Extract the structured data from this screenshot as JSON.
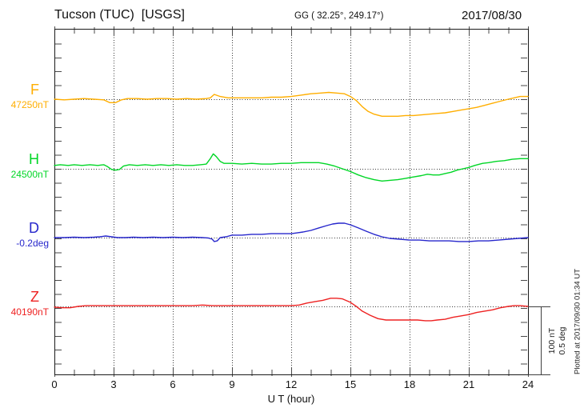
{
  "header": {
    "title": "Tucson (TUC)  [USGS]",
    "coords": "GG ( 32.25°, 249.17°)",
    "date": "2017/08/30"
  },
  "footer": {
    "xlabel": "U T (hour)"
  },
  "scale_bar": {
    "line1": "100 nT",
    "line2": "0.5 deg"
  },
  "plotted_note": "Plotted at 2017/09/30 01:34 UT",
  "chart_data": {
    "type": "line",
    "title": "Tucson (TUC) [USGS] magnetogram for 2017/08/30",
    "xlabel": "U T (hour)",
    "x_range": [
      0,
      24
    ],
    "x_ticks": [
      0,
      3,
      6,
      9,
      12,
      15,
      18,
      21,
      24
    ],
    "grid": "dotted vertical lines every 3 h; dotted horizontal line at each trace baseline",
    "legend_position": "left margin, one colored label per trace",
    "scale_per_division": {
      "field": "100 nT",
      "declination": "0.5 deg"
    },
    "series": [
      {
        "name": "F",
        "baseline_label": "47250nT",
        "baseline_value": 47250,
        "unit": "nT",
        "color": "#ffae00",
        "points": [
          [
            0,
            0
          ],
          [
            0.5,
            -1
          ],
          [
            1,
            0
          ],
          [
            1.5,
            1
          ],
          [
            2,
            0
          ],
          [
            2.5,
            -1
          ],
          [
            2.8,
            -5
          ],
          [
            3.1,
            -5
          ],
          [
            3.4,
            -1
          ],
          [
            3.7,
            1
          ],
          [
            4.2,
            1
          ],
          [
            4.7,
            0
          ],
          [
            5.2,
            1
          ],
          [
            5.7,
            1
          ],
          [
            6.2,
            0
          ],
          [
            6.7,
            1
          ],
          [
            7.2,
            0
          ],
          [
            7.7,
            1
          ],
          [
            7.9,
            2
          ],
          [
            8.1,
            7
          ],
          [
            8.4,
            4
          ],
          [
            8.8,
            2
          ],
          [
            9.5,
            2
          ],
          [
            10.5,
            2
          ],
          [
            11,
            3
          ],
          [
            11.5,
            3
          ],
          [
            12,
            4
          ],
          [
            12.5,
            6
          ],
          [
            13,
            8
          ],
          [
            13.5,
            9
          ],
          [
            13.9,
            10
          ],
          [
            14.3,
            9
          ],
          [
            14.7,
            8
          ],
          [
            15,
            4
          ],
          [
            15.3,
            -2
          ],
          [
            15.6,
            -11
          ],
          [
            15.9,
            -18
          ],
          [
            16.2,
            -22
          ],
          [
            16.6,
            -25
          ],
          [
            17,
            -25
          ],
          [
            17.4,
            -25
          ],
          [
            17.8,
            -24
          ],
          [
            18.2,
            -24
          ],
          [
            18.6,
            -23
          ],
          [
            19,
            -22
          ],
          [
            19.4,
            -21
          ],
          [
            19.8,
            -20
          ],
          [
            20.2,
            -18
          ],
          [
            20.6,
            -16
          ],
          [
            21,
            -14
          ],
          [
            21.4,
            -12
          ],
          [
            21.8,
            -9
          ],
          [
            22.2,
            -6
          ],
          [
            22.6,
            -3
          ],
          [
            23,
            0
          ],
          [
            23.3,
            2
          ],
          [
            23.6,
            4
          ],
          [
            24,
            4
          ]
        ]
      },
      {
        "name": "H",
        "baseline_label": "24500nT",
        "baseline_value": 24500,
        "unit": "nT",
        "color": "#00d626",
        "points": [
          [
            0,
            5
          ],
          [
            0.3,
            6
          ],
          [
            0.7,
            5
          ],
          [
            1,
            6
          ],
          [
            1.4,
            5
          ],
          [
            1.8,
            6
          ],
          [
            2.2,
            5
          ],
          [
            2.5,
            6
          ],
          [
            2.7,
            3
          ],
          [
            2.9,
            -1
          ],
          [
            3.1,
            -2
          ],
          [
            3.3,
            -1
          ],
          [
            3.5,
            4
          ],
          [
            3.8,
            6
          ],
          [
            4.2,
            5
          ],
          [
            4.6,
            6
          ],
          [
            5,
            5
          ],
          [
            5.4,
            6
          ],
          [
            5.8,
            5
          ],
          [
            6.2,
            6
          ],
          [
            6.6,
            5
          ],
          [
            7,
            5
          ],
          [
            7.4,
            6
          ],
          [
            7.7,
            7
          ],
          [
            7.9,
            15
          ],
          [
            8.05,
            22
          ],
          [
            8.2,
            18
          ],
          [
            8.4,
            11
          ],
          [
            8.6,
            8
          ],
          [
            9,
            8
          ],
          [
            9.5,
            7
          ],
          [
            10,
            8
          ],
          [
            10.5,
            7
          ],
          [
            11,
            7
          ],
          [
            11.5,
            8
          ],
          [
            12,
            8
          ],
          [
            12.5,
            9
          ],
          [
            13,
            9
          ],
          [
            13.4,
            9
          ],
          [
            13.8,
            7
          ],
          [
            14.2,
            4
          ],
          [
            14.6,
            0
          ],
          [
            15,
            -4
          ],
          [
            15.4,
            -9
          ],
          [
            15.8,
            -13
          ],
          [
            16.2,
            -16
          ],
          [
            16.6,
            -18
          ],
          [
            17,
            -17
          ],
          [
            17.4,
            -16
          ],
          [
            17.8,
            -14
          ],
          [
            18.2,
            -12
          ],
          [
            18.6,
            -10
          ],
          [
            18.9,
            -8
          ],
          [
            19.2,
            -9
          ],
          [
            19.5,
            -9
          ],
          [
            19.8,
            -7
          ],
          [
            20.1,
            -5
          ],
          [
            20.4,
            -2
          ],
          [
            20.7,
            0
          ],
          [
            21,
            2
          ],
          [
            21.3,
            5
          ],
          [
            21.7,
            8
          ],
          [
            22,
            9
          ],
          [
            22.4,
            11
          ],
          [
            22.8,
            12
          ],
          [
            23.2,
            14
          ],
          [
            23.6,
            15
          ],
          [
            24,
            15
          ]
        ]
      },
      {
        "name": "D",
        "baseline_label": "-0.2deg",
        "baseline_value": -0.2,
        "unit": "deg",
        "color": "#2727cc",
        "points": [
          [
            0,
            0
          ],
          [
            0.5,
            0
          ],
          [
            1,
            0.003
          ],
          [
            1.5,
            0
          ],
          [
            2,
            0.003
          ],
          [
            2.3,
            0.006
          ],
          [
            2.6,
            0.012
          ],
          [
            2.9,
            0.006
          ],
          [
            3.2,
            0
          ],
          [
            3.6,
            0
          ],
          [
            4,
            0.003
          ],
          [
            4.5,
            0
          ],
          [
            5,
            0.003
          ],
          [
            5.5,
            0
          ],
          [
            6,
            0.003
          ],
          [
            6.5,
            0
          ],
          [
            7,
            0.003
          ],
          [
            7.5,
            0
          ],
          [
            7.8,
            -0.003
          ],
          [
            8,
            -0.012
          ],
          [
            8.1,
            -0.029
          ],
          [
            8.25,
            -0.024
          ],
          [
            8.4,
            0
          ],
          [
            8.7,
            0.006
          ],
          [
            9,
            0.018
          ],
          [
            9.5,
            0.018
          ],
          [
            10,
            0.024
          ],
          [
            10.5,
            0.024
          ],
          [
            11,
            0.029
          ],
          [
            11.5,
            0.029
          ],
          [
            12,
            0.029
          ],
          [
            12.3,
            0.035
          ],
          [
            12.6,
            0.041
          ],
          [
            13,
            0.053
          ],
          [
            13.4,
            0.071
          ],
          [
            13.8,
            0.088
          ],
          [
            14.1,
            0.1
          ],
          [
            14.4,
            0.106
          ],
          [
            14.7,
            0.106
          ],
          [
            15,
            0.094
          ],
          [
            15.4,
            0.071
          ],
          [
            15.8,
            0.047
          ],
          [
            16.2,
            0.024
          ],
          [
            16.6,
            0.006
          ],
          [
            17,
            -0.006
          ],
          [
            17.5,
            -0.012
          ],
          [
            18,
            -0.018
          ],
          [
            18.5,
            -0.018
          ],
          [
            19,
            -0.024
          ],
          [
            19.5,
            -0.024
          ],
          [
            20,
            -0.024
          ],
          [
            20.5,
            -0.029
          ],
          [
            21,
            -0.029
          ],
          [
            21.5,
            -0.024
          ],
          [
            22,
            -0.024
          ],
          [
            22.5,
            -0.018
          ],
          [
            23,
            -0.012
          ],
          [
            23.5,
            -0.006
          ],
          [
            24,
            0
          ]
        ]
      },
      {
        "name": "Z",
        "baseline_label": "40190nT",
        "baseline_value": 40190,
        "unit": "nT",
        "color": "#ee2222",
        "points": [
          [
            0,
            -1
          ],
          [
            0.4,
            -2
          ],
          [
            0.8,
            -2
          ],
          [
            1.2,
            0
          ],
          [
            1.6,
            1
          ],
          [
            2,
            1
          ],
          [
            2.5,
            1
          ],
          [
            3,
            1
          ],
          [
            3.5,
            1
          ],
          [
            4,
            1
          ],
          [
            4.5,
            1
          ],
          [
            5,
            1
          ],
          [
            5.5,
            1
          ],
          [
            6,
            1
          ],
          [
            6.5,
            1
          ],
          [
            7,
            1
          ],
          [
            7.5,
            2
          ],
          [
            8,
            1
          ],
          [
            8.5,
            1
          ],
          [
            9,
            1
          ],
          [
            9.5,
            1
          ],
          [
            10,
            1
          ],
          [
            10.5,
            1
          ],
          [
            11,
            1
          ],
          [
            11.5,
            1
          ],
          [
            12,
            1
          ],
          [
            12.4,
            2
          ],
          [
            12.8,
            5
          ],
          [
            13.2,
            7
          ],
          [
            13.6,
            9
          ],
          [
            14,
            12
          ],
          [
            14.3,
            12
          ],
          [
            14.6,
            11
          ],
          [
            15,
            6
          ],
          [
            15.3,
            0
          ],
          [
            15.6,
            -7
          ],
          [
            16,
            -13
          ],
          [
            16.4,
            -18
          ],
          [
            16.8,
            -20
          ],
          [
            17.2,
            -20
          ],
          [
            17.6,
            -20
          ],
          [
            18,
            -20
          ],
          [
            18.4,
            -20
          ],
          [
            18.8,
            -21
          ],
          [
            19.1,
            -21
          ],
          [
            19.4,
            -20
          ],
          [
            19.8,
            -19
          ],
          [
            20.2,
            -16
          ],
          [
            20.6,
            -14
          ],
          [
            21,
            -12
          ],
          [
            21.4,
            -9
          ],
          [
            21.8,
            -7
          ],
          [
            22.2,
            -5
          ],
          [
            22.6,
            -2
          ],
          [
            23,
            0
          ],
          [
            23.3,
            1
          ],
          [
            23.6,
            1
          ],
          [
            24,
            0
          ]
        ]
      }
    ]
  }
}
